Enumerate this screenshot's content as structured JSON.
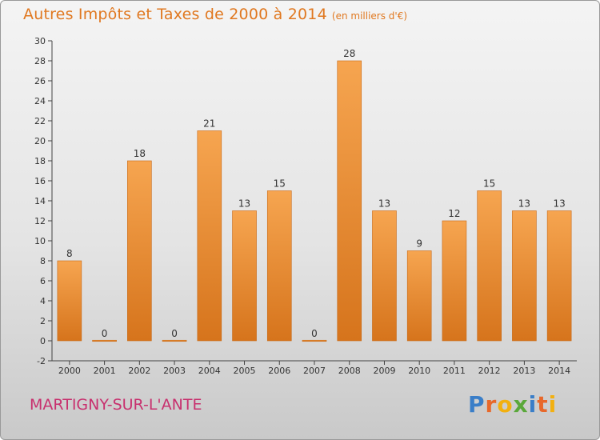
{
  "title": "Autres Impôts et Taxes de 2000 à 2014",
  "unit_note": "(en milliers d'€)",
  "commune": "MARTIGNY-SUR-L'ANTE",
  "brand": {
    "letters": [
      "P",
      "r",
      "o",
      "x",
      "i",
      "t",
      "i"
    ],
    "colors": [
      "#3a7ec8",
      "#e8682a",
      "#f2b010",
      "#5aa83a",
      "#3a7ec8",
      "#e8682a",
      "#f2b010"
    ]
  },
  "colors": {
    "bar_top": "#f6a550",
    "bar_bottom": "#d6741c",
    "title": "#e07820",
    "commune": "#c8306e"
  },
  "chart_data": {
    "type": "bar",
    "title": "Autres Impôts et Taxes de 2000 à 2014",
    "subtitle": "(en milliers d'€)",
    "categories": [
      "2000",
      "2001",
      "2002",
      "2003",
      "2004",
      "2005",
      "2006",
      "2007",
      "2008",
      "2009",
      "2010",
      "2011",
      "2012",
      "2013",
      "2014"
    ],
    "values": [
      8,
      0,
      18,
      0,
      21,
      13,
      15,
      0,
      28,
      13,
      9,
      12,
      15,
      13,
      13
    ],
    "ylim": [
      -2,
      30
    ],
    "yticks": [
      -2,
      0,
      2,
      4,
      6,
      8,
      10,
      12,
      14,
      16,
      18,
      20,
      22,
      24,
      26,
      28,
      30
    ],
    "grid": false,
    "legend": "none"
  }
}
